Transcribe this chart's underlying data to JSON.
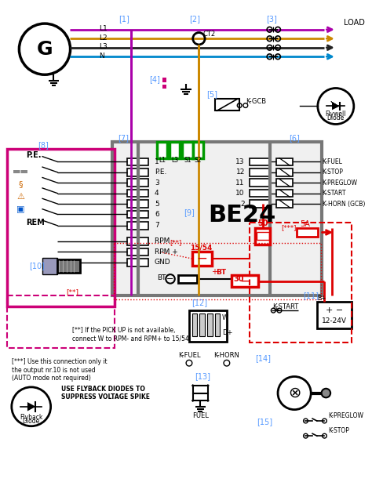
{
  "bg": "#ffffff",
  "lb": "#5599ff",
  "rd": "#dd0000",
  "gn": "#009900",
  "pk": "#cc0077",
  "gy": "#777777",
  "wL1": "#aa00aa",
  "wL2": "#cc8800",
  "wL3": "#222222",
  "wN": "#0088cc",
  "left_terms": [
    "1",
    "P.E.",
    "3",
    "4",
    "5",
    "6",
    "7"
  ],
  "right_terms": [
    "13",
    "12",
    "11",
    "10",
    "2"
  ],
  "k_labels": [
    "K-FUEL",
    "K-STOP",
    "K-PREGLOW",
    "K-START",
    "K-HORN (GCB)"
  ],
  "rpm_terms": [
    "RPM -",
    "RPM +",
    "GND"
  ],
  "gc_labels": [
    "L1",
    "L3",
    "S1",
    "S2"
  ],
  "note1": "[**] If the PICK UP is not available,\nconnect W to RPM- and RPM+ to 15/54",
  "note2": "[***] Use this connection only it\nthe output nr.10 is not used\n(AUTO mode not required)",
  "note3": "USE FLYBACK DIODES TO\nSUPPRESS VOLTAGE SPIKE"
}
